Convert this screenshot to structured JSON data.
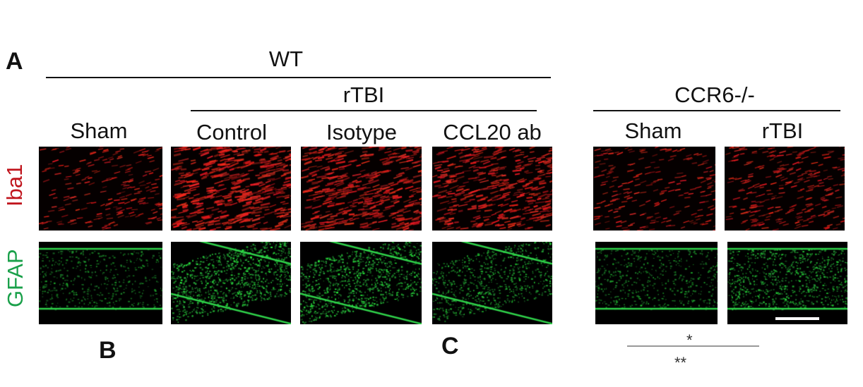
{
  "panel_letters": {
    "a": "A",
    "b": "B",
    "c": "C"
  },
  "groups": {
    "wt": "WT",
    "rtbi": "rTBI",
    "ccr6": "CCR6-/-"
  },
  "columns": [
    "Sham",
    "Control",
    "Isotype",
    "CCL20 ab",
    "Sham",
    "rTBI"
  ],
  "rows": {
    "iba1": {
      "label": "Iba1",
      "color": "#c0141c"
    },
    "gfap": {
      "label": "GFAP",
      "color": "#1aa04a"
    }
  },
  "significance": {
    "single": "*",
    "double": "**"
  },
  "intensity": {
    "iba1": [
      0.35,
      0.95,
      0.85,
      0.8,
      0.35,
      0.45
    ],
    "gfap": [
      0.3,
      0.9,
      0.85,
      0.6,
      0.35,
      0.7
    ]
  }
}
